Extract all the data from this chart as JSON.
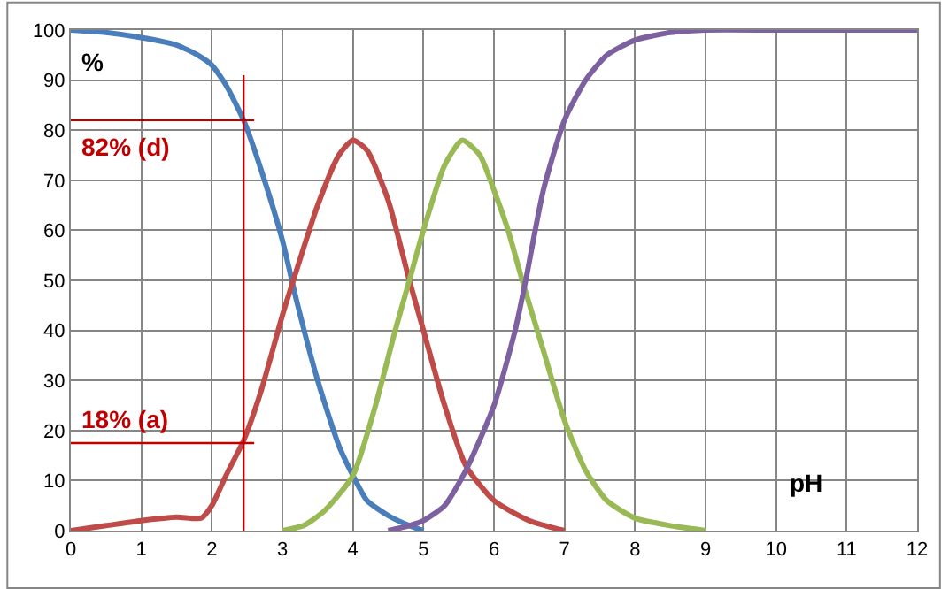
{
  "chart_data": {
    "type": "line",
    "xlabel": "pH",
    "ylabel": "%",
    "xlim": [
      0,
      12
    ],
    "ylim": [
      0,
      100
    ],
    "xticks": [
      0,
      1,
      2,
      3,
      4,
      5,
      6,
      7,
      8,
      9,
      10,
      11,
      12
    ],
    "yticks": [
      0,
      10,
      20,
      30,
      40,
      50,
      60,
      70,
      80,
      90,
      100
    ],
    "grid": true,
    "marker": "none",
    "line_style": "solid",
    "series": [
      {
        "color": "#4a7ebb",
        "x": [
          0,
          0.5,
          1,
          1.5,
          1.8,
          2,
          2.2,
          2.45,
          2.7,
          3,
          3.2,
          3.5,
          3.8,
          4,
          4.2,
          4.5,
          4.8,
          5
        ],
        "values": [
          100,
          99.5,
          98.5,
          97,
          95,
          93,
          89,
          82,
          72,
          58,
          46,
          30,
          17,
          11,
          6,
          3,
          1,
          0
        ]
      },
      {
        "color": "#be4b48",
        "x": [
          0,
          0.5,
          1,
          1.5,
          1.85,
          2,
          2.2,
          2.45,
          2.7,
          3,
          3.2,
          3.5,
          3.8,
          4,
          4.2,
          4.5,
          4.8,
          5,
          5.3,
          5.6,
          6,
          6.5,
          7
        ],
        "values": [
          0,
          1,
          2,
          2.7,
          2.5,
          5,
          11,
          18,
          28,
          43,
          52,
          65,
          75,
          78,
          76,
          66,
          50,
          40,
          25,
          13,
          6,
          2,
          0
        ]
      },
      {
        "color": "#98b954",
        "x": [
          3,
          3.3,
          3.6,
          4,
          4.3,
          4.6,
          4.8,
          5,
          5.3,
          5.55,
          5.8,
          6,
          6.2,
          6.4,
          6.7,
          7,
          7.3,
          7.6,
          8,
          8.5,
          9
        ],
        "values": [
          0,
          1,
          4,
          11,
          24,
          40,
          50,
          60,
          73,
          78,
          75,
          68,
          60,
          50,
          36,
          22,
          12,
          6,
          2.5,
          1,
          0
        ]
      },
      {
        "color": "#7d60a0",
        "x": [
          4.5,
          4.8,
          5,
          5.3,
          5.6,
          6,
          6.3,
          6.45,
          6.7,
          7,
          7.3,
          7.6,
          8,
          8.5,
          9,
          10,
          11,
          12
        ],
        "values": [
          0,
          1,
          2,
          5,
          12,
          25,
          40,
          50,
          68,
          82,
          90,
          95,
          98,
          99.5,
          100,
          100,
          100,
          100
        ]
      }
    ],
    "ref_lines": [
      {
        "axis": "x",
        "value": 2.45,
        "color": "#c00000"
      },
      {
        "axis": "y",
        "value": 82,
        "label": "82% (d)",
        "color": "#c00000"
      },
      {
        "axis": "y",
        "value": 17.5,
        "label": "18% (a)",
        "color": "#c00000"
      }
    ]
  }
}
